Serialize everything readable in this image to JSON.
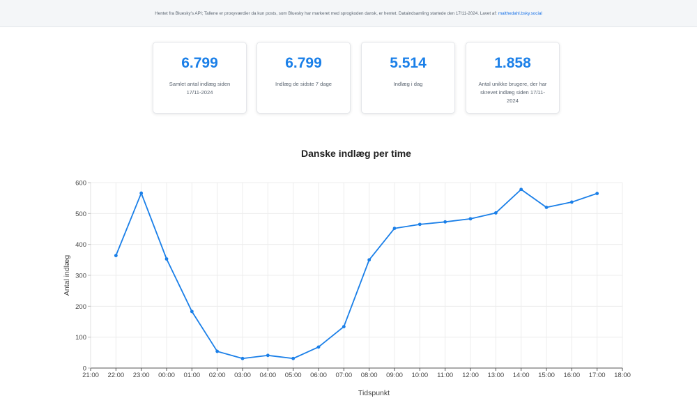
{
  "banner": {
    "text": "Hentet fra Bluesky's API; Tallene er proxyværdier da kun posts, som Bluesky har markeret med sprogkoden dansk, er hentet. Dataindsamling startede den 17/11-2024. Lavet af:",
    "link": "malthedahl.bsky.social"
  },
  "stats": [
    {
      "value": "6.799",
      "label": "Samlet antal indlæg siden 17/11-2024"
    },
    {
      "value": "6.799",
      "label": "Indlæg de sidste 7 dage"
    },
    {
      "value": "5.514",
      "label": "Indlæg i dag"
    },
    {
      "value": "1.858",
      "label": "Antal unikke brugere, der har skrevet indlæg siden 17/11-2024"
    }
  ],
  "colors": {
    "accent": "#1a7fe8",
    "line": "#1a7fe8"
  },
  "chart_data": {
    "type": "line",
    "title": "Danske indlæg per time",
    "xlabel": "Tidspunkt",
    "ylabel": "Antal indlæg",
    "x_ticks": [
      "21:00",
      "22:00",
      "23:00",
      "00:00",
      "01:00",
      "02:00",
      "03:00",
      "04:00",
      "05:00",
      "06:00",
      "07:00",
      "08:00",
      "09:00",
      "10:00",
      "11:00",
      "12:00",
      "13:00",
      "14:00",
      "15:00",
      "16:00",
      "17:00",
      "18:00"
    ],
    "y_ticks": [
      0,
      100,
      200,
      300,
      400,
      500,
      600
    ],
    "ylim": [
      0,
      600
    ],
    "grid": true,
    "series": [
      {
        "x": [
          "22:00",
          "23:00",
          "00:00",
          "01:00",
          "02:00",
          "03:00",
          "04:00",
          "05:00",
          "06:00",
          "07:00",
          "08:00",
          "09:00",
          "10:00",
          "11:00",
          "12:00",
          "13:00",
          "14:00",
          "15:00",
          "16:00",
          "17:00"
        ],
        "values": [
          364,
          566,
          353,
          183,
          54,
          31,
          41,
          31,
          68,
          134,
          350,
          452,
          465,
          473,
          483,
          502,
          578,
          520,
          537,
          565
        ]
      }
    ]
  }
}
